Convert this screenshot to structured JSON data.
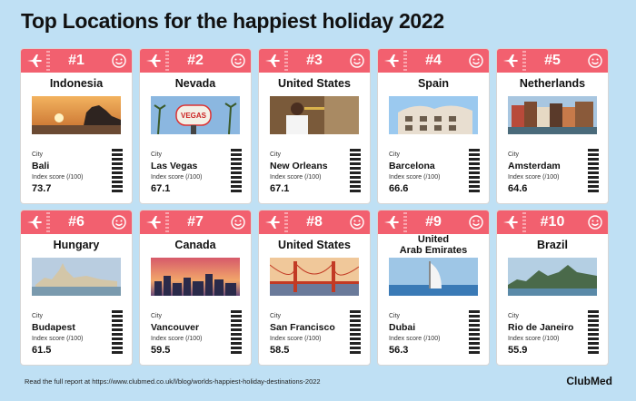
{
  "title": "Top Locations for the happiest holiday 2022",
  "labels": {
    "city": "City",
    "index": "Index score (/100)"
  },
  "cards": [
    {
      "rank": "#1",
      "country": "Indonesia",
      "city": "Bali",
      "score": "73.7",
      "photo": "temple-sunset"
    },
    {
      "rank": "#2",
      "country": "Nevada",
      "city": "Las Vegas",
      "score": "67.1",
      "photo": "las-vegas-sign"
    },
    {
      "rank": "#3",
      "country": "United States",
      "city": "New Orleans",
      "score": "67.1",
      "photo": "trumpet-player"
    },
    {
      "rank": "#4",
      "country": "Spain",
      "city": "Barcelona",
      "score": "66.6",
      "photo": "gaudi-building"
    },
    {
      "rank": "#5",
      "country": "Netherlands",
      "city": "Amsterdam",
      "score": "64.6",
      "photo": "canal-houses"
    },
    {
      "rank": "#6",
      "country": "Hungary",
      "city": "Budapest",
      "score": "61.5",
      "photo": "parliament-river"
    },
    {
      "rank": "#7",
      "country": "Canada",
      "city": "Vancouver",
      "score": "59.5",
      "photo": "skyline-sunset"
    },
    {
      "rank": "#8",
      "country": "United States",
      "city": "San Francisco",
      "score": "58.5",
      "photo": "golden-gate"
    },
    {
      "rank": "#9",
      "country": "United\nArab Emirates",
      "city": "Dubai",
      "score": "56.3",
      "photo": "burj-al-arab"
    },
    {
      "rank": "#10",
      "country": "Brazil",
      "city": "Rio de Janeiro",
      "score": "55.9",
      "photo": "sugarloaf-bay"
    }
  ],
  "footer": "Read the full report at https://www.clubmed.co.uk/l/blog/worlds-happiest-holiday-destinations-2022",
  "logo": "ClubMed",
  "colors": {
    "accent": "#f2606f",
    "background": "#bfe0f4"
  }
}
